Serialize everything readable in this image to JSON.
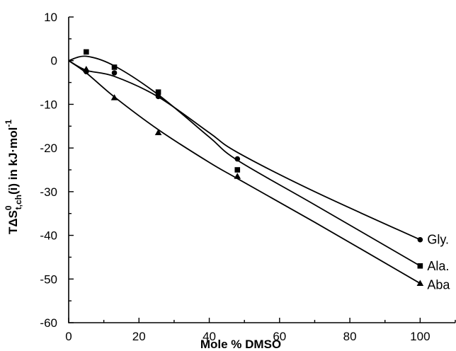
{
  "chart_data": {
    "type": "scatter",
    "xlabel": "Mole % DMSO",
    "ylabel_main": "TΔS",
    "ylabel_sup": "0",
    "ylabel_sub": "t,ch",
    "ylabel_rest": "(i) in kJ·mol",
    "ylabel_rest_sup": "-1",
    "xlim": [
      0,
      110
    ],
    "ylim": [
      -60,
      10
    ],
    "x_ticks": [
      0,
      20,
      40,
      60,
      80,
      100
    ],
    "y_ticks": [
      10,
      0,
      -10,
      -20,
      -30,
      -40,
      -50,
      -60
    ],
    "grid": false,
    "series": [
      {
        "name": "Gly.",
        "marker": "circle",
        "points": [
          [
            0,
            0
          ],
          [
            5,
            -2.5
          ],
          [
            13,
            -2.8
          ],
          [
            25.5,
            -8.2
          ],
          [
            48,
            -22.5
          ],
          [
            100,
            -41
          ]
        ],
        "curve": [
          [
            0,
            0
          ],
          [
            5,
            -2.2
          ],
          [
            13,
            -3.6
          ],
          [
            25.5,
            -8.3
          ],
          [
            40,
            -16.5
          ],
          [
            48,
            -21
          ],
          [
            70,
            -30
          ],
          [
            100,
            -41
          ]
        ]
      },
      {
        "name": "Ala.",
        "marker": "square",
        "points": [
          [
            0,
            0
          ],
          [
            5,
            2
          ],
          [
            13,
            -1.5
          ],
          [
            25.5,
            -7.2
          ],
          [
            48,
            -25
          ],
          [
            100,
            -47
          ]
        ],
        "curve": [
          [
            0,
            0
          ],
          [
            5,
            1
          ],
          [
            13,
            -1.2
          ],
          [
            25.5,
            -7.8
          ],
          [
            40,
            -17.5
          ],
          [
            48,
            -22.8
          ],
          [
            70,
            -33
          ],
          [
            100,
            -47
          ]
        ]
      },
      {
        "name": "Aba",
        "marker": "triangle",
        "points": [
          [
            0,
            0
          ],
          [
            5,
            -2
          ],
          [
            13,
            -8.5
          ],
          [
            25.5,
            -16.5
          ],
          [
            48,
            -26.5
          ],
          [
            100,
            -51
          ]
        ],
        "curve": [
          [
            0,
            0
          ],
          [
            5,
            -2.8
          ],
          [
            13,
            -8.3
          ],
          [
            25.5,
            -15.8
          ],
          [
            40,
            -23.3
          ],
          [
            48,
            -27
          ],
          [
            70,
            -37
          ],
          [
            100,
            -51
          ]
        ]
      }
    ]
  }
}
